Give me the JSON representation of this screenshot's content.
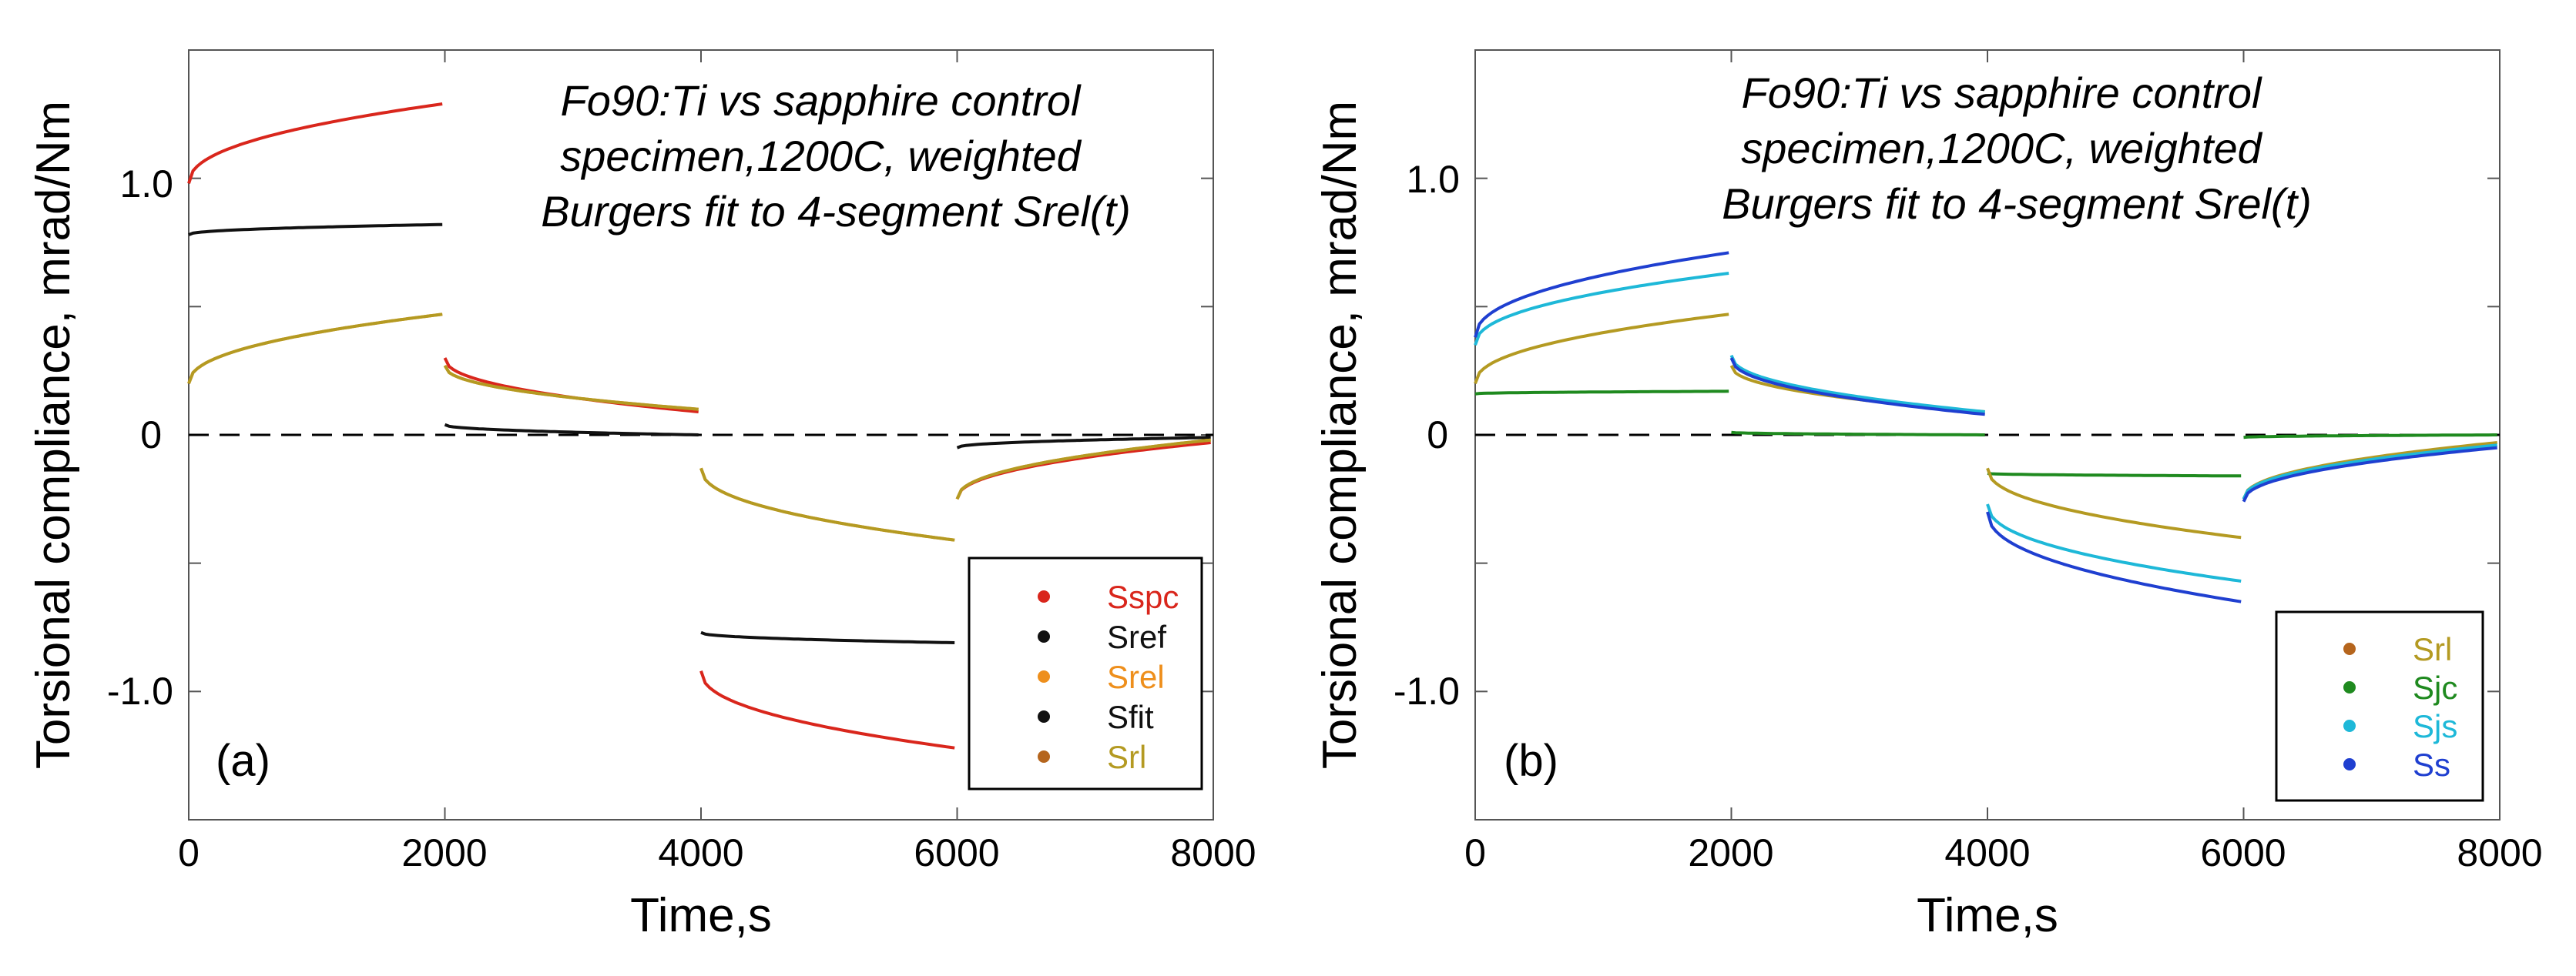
{
  "colors": {
    "Sspc": "#d9261c",
    "Sref": "#111111",
    "Srel": "#ee8f1c",
    "Sfit": "#111111",
    "Srl_marker": "#b5651d",
    "Srl_text": "#b49a22",
    "Sjc": "#1f8a1f",
    "Sjs": "#1eb8d8",
    "Ss": "#1f3fd0",
    "zero_line": "#000000",
    "axis": "#555555"
  },
  "chart_data": [
    {
      "id": "a",
      "type": "line",
      "panel_label": "(a)",
      "title": [
        "Fo90:Ti vs sapphire control",
        "specimen,1200C, weighted",
        "Burgers fit to 4-segment Srel(t)"
      ],
      "xlabel": "Time,s",
      "ylabel": "Torsional compliance, mrad/Nm",
      "xlim": [
        0,
        8000
      ],
      "ylim": [
        -1.5,
        1.5
      ],
      "xticks": [
        0,
        2000,
        4000,
        6000,
        8000
      ],
      "xtick_labels": [
        "0",
        "2000",
        "4000",
        "6000",
        "8000"
      ],
      "yticks": [
        -1.0,
        0,
        1.0
      ],
      "ytick_labels": [
        "-1.0",
        "0",
        "1.0"
      ],
      "zero_line": true,
      "legend": [
        {
          "name": "Sspc",
          "marker": "Sspc",
          "text": "Sspc"
        },
        {
          "name": "Sref",
          "marker": "Sref",
          "text": "Sref"
        },
        {
          "name": "Srel",
          "marker": "Srel",
          "text": "Srel"
        },
        {
          "name": "Sfit",
          "marker": "Sfit",
          "text": "Sfit"
        },
        {
          "name": "Srl",
          "marker": "Srl_marker",
          "text": "Srl_text"
        }
      ],
      "series": [
        {
          "name": "Sspc",
          "color": "Sspc",
          "segments": [
            {
              "t0": 0,
              "t1": 2000,
              "y0": 0.98,
              "y1": 1.29,
              "shape": "sqrt"
            },
            {
              "t0": 2000,
              "t1": 4000,
              "y0": 0.3,
              "y1": 0.09,
              "shape": "sqrt"
            },
            {
              "t0": 4000,
              "t1": 6000,
              "y0": -0.92,
              "y1": -1.22,
              "shape": "sqrt"
            },
            {
              "t0": 6000,
              "t1": 8000,
              "y0": -0.25,
              "y1": -0.03,
              "shape": "sqrt"
            }
          ]
        },
        {
          "name": "Sref",
          "color": "Sref",
          "segments": [
            {
              "t0": 0,
              "t1": 2000,
              "y0": 0.78,
              "y1": 0.82,
              "shape": "sqrt"
            },
            {
              "t0": 2000,
              "t1": 4000,
              "y0": 0.04,
              "y1": 0.0,
              "shape": "sqrt"
            },
            {
              "t0": 4000,
              "t1": 6000,
              "y0": -0.77,
              "y1": -0.81,
              "shape": "sqrt"
            },
            {
              "t0": 6000,
              "t1": 8000,
              "y0": -0.05,
              "y1": -0.01,
              "shape": "sqrt"
            }
          ]
        },
        {
          "name": "Srel",
          "color": "Srel",
          "segments": [
            {
              "t0": 0,
              "t1": 2000,
              "y0": 0.2,
              "y1": 0.47,
              "shape": "sqrt"
            },
            {
              "t0": 2000,
              "t1": 4000,
              "y0": 0.27,
              "y1": 0.1,
              "shape": "sqrt"
            },
            {
              "t0": 4000,
              "t1": 6000,
              "y0": -0.13,
              "y1": -0.41,
              "shape": "sqrt"
            },
            {
              "t0": 6000,
              "t1": 8000,
              "y0": -0.25,
              "y1": -0.02,
              "shape": "sqrt"
            }
          ]
        },
        {
          "name": "Srl",
          "color": "Srl_text",
          "segments": [
            {
              "t0": 0,
              "t1": 2000,
              "y0": 0.2,
              "y1": 0.47,
              "shape": "sqrt"
            },
            {
              "t0": 2000,
              "t1": 4000,
              "y0": 0.27,
              "y1": 0.1,
              "shape": "sqrt"
            },
            {
              "t0": 4000,
              "t1": 6000,
              "y0": -0.13,
              "y1": -0.41,
              "shape": "sqrt"
            },
            {
              "t0": 6000,
              "t1": 8000,
              "y0": -0.25,
              "y1": -0.02,
              "shape": "sqrt"
            }
          ]
        }
      ]
    },
    {
      "id": "b",
      "type": "line",
      "panel_label": "(b)",
      "title": [
        "Fo90:Ti vs sapphire control",
        "specimen,1200C, weighted",
        "Burgers fit to 4-segment Srel(t)"
      ],
      "xlabel": "Time,s",
      "ylabel": "Torsional compliance, mrad/Nm",
      "xlim": [
        0,
        8000
      ],
      "ylim": [
        -1.5,
        1.5
      ],
      "xticks": [
        0,
        2000,
        4000,
        6000,
        8000
      ],
      "xtick_labels": [
        "0",
        "2000",
        "4000",
        "6000",
        "8000"
      ],
      "yticks": [
        -1.0,
        0,
        1.0
      ],
      "ytick_labels": [
        "-1.0",
        "0",
        "1.0"
      ],
      "zero_line": true,
      "legend": [
        {
          "name": "Srl",
          "marker": "Srl_marker",
          "text": "Srl_text"
        },
        {
          "name": "Sjc",
          "marker": "Sjc",
          "text": "Sjc"
        },
        {
          "name": "Sjs",
          "marker": "Sjs",
          "text": "Sjs"
        },
        {
          "name": "Ss",
          "marker": "Ss",
          "text": "Ss"
        }
      ],
      "series": [
        {
          "name": "Sjc",
          "color": "Sjc",
          "segments": [
            {
              "t0": 0,
              "t1": 2000,
              "y0": 0.16,
              "y1": 0.17,
              "shape": "sqrt"
            },
            {
              "t0": 2000,
              "t1": 4000,
              "y0": 0.01,
              "y1": 0.0,
              "shape": "sqrt"
            },
            {
              "t0": 4000,
              "t1": 6000,
              "y0": -0.15,
              "y1": -0.16,
              "shape": "sqrt"
            },
            {
              "t0": 6000,
              "t1": 8000,
              "y0": -0.01,
              "y1": 0.0,
              "shape": "sqrt"
            }
          ]
        },
        {
          "name": "Srl",
          "color": "Srl_text",
          "segments": [
            {
              "t0": 0,
              "t1": 2000,
              "y0": 0.2,
              "y1": 0.47,
              "shape": "sqrt"
            },
            {
              "t0": 2000,
              "t1": 4000,
              "y0": 0.27,
              "y1": 0.09,
              "shape": "sqrt"
            },
            {
              "t0": 4000,
              "t1": 6000,
              "y0": -0.13,
              "y1": -0.4,
              "shape": "sqrt"
            },
            {
              "t0": 6000,
              "t1": 8000,
              "y0": -0.25,
              "y1": -0.03,
              "shape": "sqrt"
            }
          ]
        },
        {
          "name": "Sjs",
          "color": "Sjs",
          "segments": [
            {
              "t0": 0,
              "t1": 2000,
              "y0": 0.35,
              "y1": 0.63,
              "shape": "sqrt"
            },
            {
              "t0": 2000,
              "t1": 4000,
              "y0": 0.31,
              "y1": 0.09,
              "shape": "sqrt"
            },
            {
              "t0": 4000,
              "t1": 6000,
              "y0": -0.27,
              "y1": -0.57,
              "shape": "sqrt"
            },
            {
              "t0": 6000,
              "t1": 8000,
              "y0": -0.25,
              "y1": -0.04,
              "shape": "sqrt"
            }
          ]
        },
        {
          "name": "Ss",
          "color": "Ss",
          "segments": [
            {
              "t0": 0,
              "t1": 2000,
              "y0": 0.38,
              "y1": 0.71,
              "shape": "sqrt"
            },
            {
              "t0": 2000,
              "t1": 4000,
              "y0": 0.3,
              "y1": 0.08,
              "shape": "sqrt"
            },
            {
              "t0": 4000,
              "t1": 6000,
              "y0": -0.3,
              "y1": -0.65,
              "shape": "sqrt"
            },
            {
              "t0": 6000,
              "t1": 8000,
              "y0": -0.26,
              "y1": -0.05,
              "shape": "sqrt"
            }
          ]
        }
      ]
    }
  ]
}
